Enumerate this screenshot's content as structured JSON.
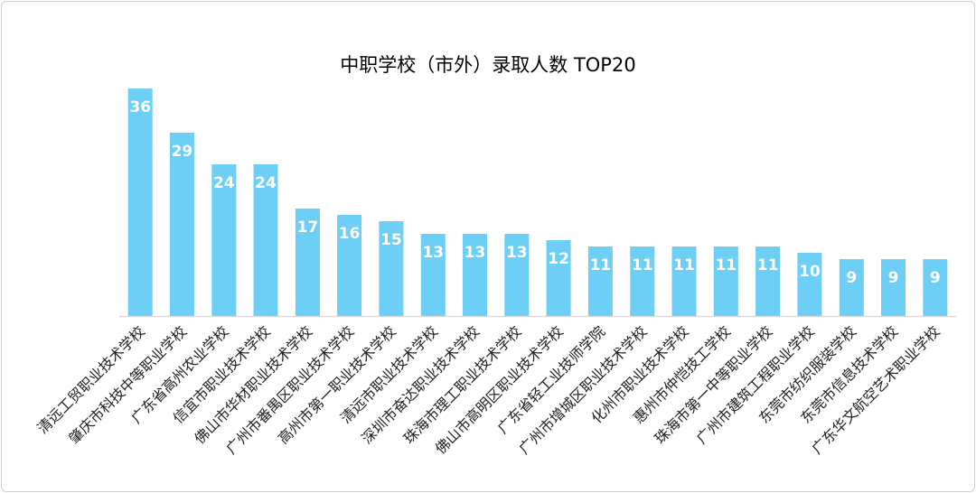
{
  "chart_data": {
    "type": "bar",
    "title": "中职学校（市外）录取人数 TOP20",
    "xlabel": "",
    "ylabel": "",
    "categories": [
      "清远工贸职业技术学校",
      "肇庆市科技中等职业学校",
      "广东省高州农业学校",
      "信宜市职业技术学校",
      "佛山市华材职业技术学校",
      "广州市番禺区职业技术学校",
      "高州市第一职业技术学校",
      "清远市职业技术学校",
      "深圳市奋达职业技术学校",
      "珠海市理工职业技术学校",
      "佛山市高明区职业技术学校",
      "广东省轻工业技师学院",
      "广州市增城区职业技术学校",
      "化州市职业技术学校",
      "惠州市仲恺技工学校",
      "珠海市第一中等职业学校",
      "广州市建筑工程职业学校",
      "东莞市纺织服装学校",
      "东莞市信息技术学校",
      "广东华文航空艺术职业学校"
    ],
    "values": [
      36,
      29,
      24,
      24,
      17,
      16,
      15,
      13,
      13,
      13,
      12,
      11,
      11,
      11,
      11,
      11,
      10,
      9,
      9,
      9
    ],
    "ylim": [
      0,
      36
    ],
    "grid": false,
    "legend": "none",
    "bar_color": "#6dcff6",
    "baseline_color": "#d9d9d9"
  }
}
